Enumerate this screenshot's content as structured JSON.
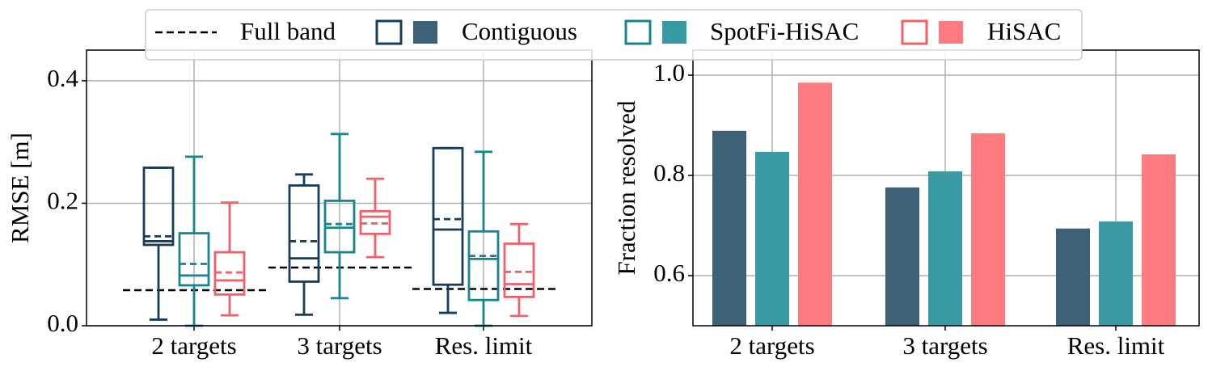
{
  "chart_data": [
    {
      "type": "box",
      "ylabel": "RMSE [m]",
      "categories": [
        "2 targets",
        "3 targets",
        "Res. limit"
      ],
      "ylim": [
        0,
        0.45
      ],
      "yticks": [
        {
          "value": 0,
          "label": "0.0"
        },
        {
          "value": 0.2,
          "label": "0.2"
        },
        {
          "value": 0.4,
          "label": "0.4"
        }
      ],
      "grid": true,
      "reference": {
        "name": "Full band",
        "values": [
          0.058,
          0.095,
          0.06
        ]
      },
      "series": [
        {
          "name": "Contiguous",
          "color": "#173d5a",
          "whislo": [
            0.01,
            0.018,
            0.021
          ],
          "q1": [
            0.132,
            0.072,
            0.067
          ],
          "median": [
            0.138,
            0.11,
            0.157
          ],
          "q3": [
            0.258,
            0.229,
            0.29
          ],
          "whishi": [
            0.258,
            0.247,
            0.29
          ],
          "mean": [
            0.146,
            0.138,
            0.174
          ]
        },
        {
          "name": "SpotFi-HiSAC",
          "color": "#17868c",
          "whislo": [
            0,
            0.045,
            0
          ],
          "q1": [
            0.066,
            0.12,
            0.042
          ],
          "median": [
            0.082,
            0.16,
            0.109
          ],
          "q3": [
            0.151,
            0.204,
            0.154
          ],
          "whishi": [
            0.276,
            0.313,
            0.284
          ],
          "mean": [
            0.101,
            0.166,
            0.114
          ]
        },
        {
          "name": "HiSAC",
          "color": "#f0606a",
          "whislo": [
            0.017,
            0.112,
            0.016
          ],
          "q1": [
            0.051,
            0.15,
            0.047
          ],
          "median": [
            0.074,
            0.178,
            0.068
          ],
          "q3": [
            0.12,
            0.187,
            0.134
          ],
          "whishi": [
            0.201,
            0.24,
            0.166
          ],
          "mean": [
            0.087,
            0.167,
            0.088
          ]
        }
      ]
    },
    {
      "type": "bar",
      "ylabel": "Fraction resolved",
      "categories": [
        "2 targets",
        "3 targets",
        "Res. limit"
      ],
      "ylim": [
        0.5,
        1.05
      ],
      "yticks": [
        {
          "value": 0.6,
          "label": "0.6"
        },
        {
          "value": 0.8,
          "label": "0.8"
        },
        {
          "value": 1.0,
          "label": "1.0"
        }
      ],
      "grid": true,
      "series": [
        {
          "color": "#3d6176",
          "values": [
            0.889,
            0.776,
            0.694
          ]
        },
        {
          "color": "#3a9aa3",
          "values": [
            0.847,
            0.808,
            0.708
          ]
        },
        {
          "color": "#ff7b80",
          "values": [
            0.985,
            0.884,
            0.842
          ]
        }
      ]
    }
  ]
}
